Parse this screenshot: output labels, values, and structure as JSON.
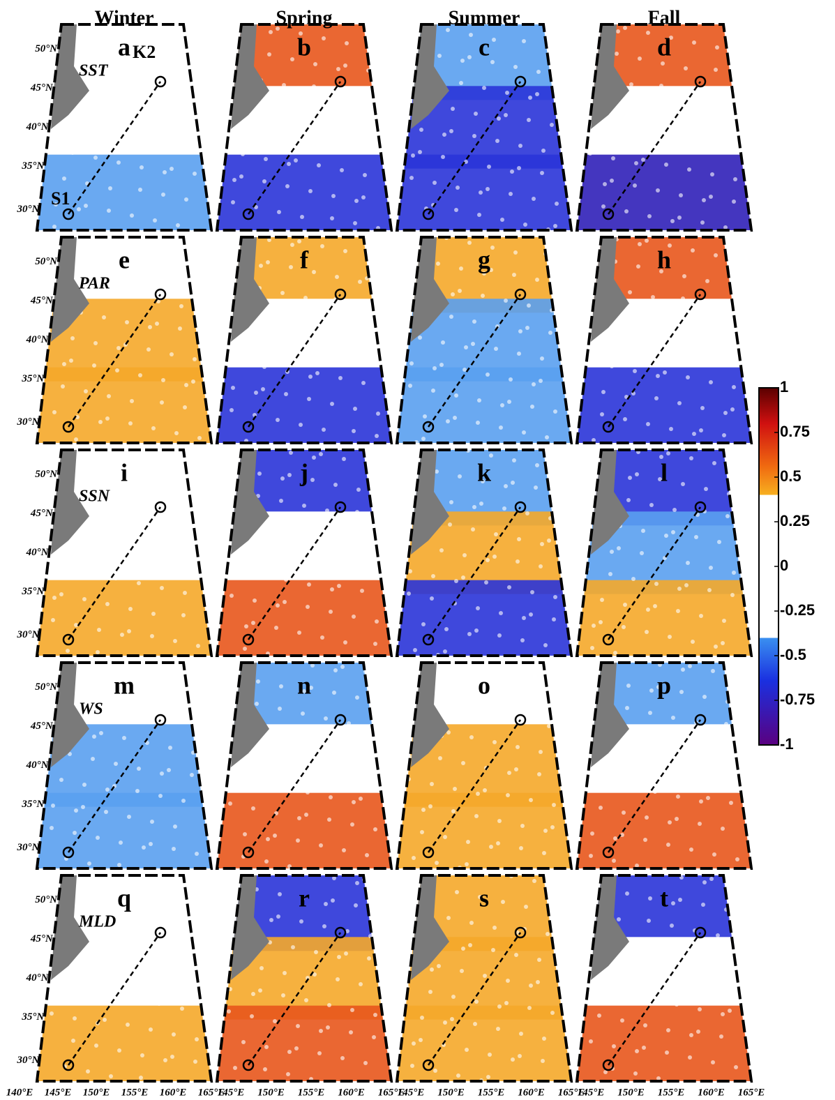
{
  "columns": [
    "Winter",
    "Spring",
    "Summer",
    "Fall"
  ],
  "rows": [
    {
      "variable": "SST",
      "letters": [
        "a",
        "b",
        "c",
        "d"
      ]
    },
    {
      "variable": "PAR",
      "letters": [
        "e",
        "f",
        "g",
        "h"
      ]
    },
    {
      "variable": "SSN",
      "letters": [
        "i",
        "j",
        "k",
        "l"
      ]
    },
    {
      "variable": "WS",
      "letters": [
        "m",
        "n",
        "o",
        "p"
      ]
    },
    {
      "variable": "MLD",
      "letters": [
        "q",
        "r",
        "s",
        "t"
      ]
    }
  ],
  "stations": [
    "S1",
    "K2"
  ],
  "lat_labels": [
    "50°N",
    "45°N",
    "40°N",
    "35°N",
    "30°N"
  ],
  "lon_labels": [
    [
      "140°E",
      "145°E",
      "150°E",
      "155°E",
      "160°E",
      "165°E"
    ],
    [
      "145°E",
      "150°E",
      "155°E",
      "160°E",
      "165°E"
    ],
    [
      "145°E",
      "150°E",
      "155°E",
      "160°E",
      "165°E"
    ],
    [
      "145°E",
      "150°E",
      "155°E",
      "160°E",
      "165°E"
    ]
  ],
  "colorbar": {
    "ticks": [
      1,
      0.75,
      0.5,
      0.25,
      0,
      -0.25,
      -0.5,
      -0.75,
      -1
    ],
    "lim": [
      -1,
      1
    ]
  }
}
